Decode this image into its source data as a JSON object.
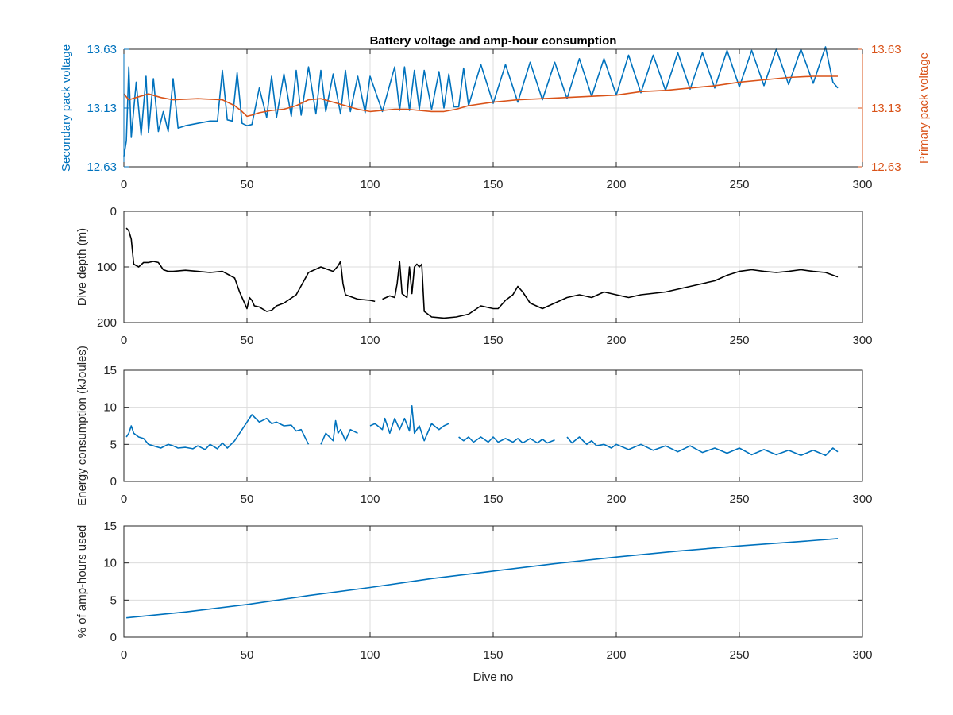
{
  "colors": {
    "blue": "#0072BD",
    "orange": "#D95319",
    "black": "#000000",
    "axis": "#262626",
    "grid": "#dcdcdc"
  },
  "chart_data": [
    {
      "type": "line",
      "title": "Battery voltage and amp-hour consumption",
      "xlabel": "",
      "ylabel": "Secondary pack voltage",
      "ylabel_right": "Primary pack voltage",
      "xlim": [
        0,
        300
      ],
      "ylim": [
        12.63,
        13.63
      ],
      "ylim_right": [
        12.63,
        13.63
      ],
      "xticks": [
        "0",
        "50",
        "100",
        "150",
        "200",
        "250",
        "300"
      ],
      "yticks": [
        "12.63",
        "13.13",
        "13.63"
      ],
      "yticks_right": [
        "12.63",
        "13.13",
        "13.63"
      ],
      "grid": true,
      "series": [
        {
          "axis": "left",
          "color": "#0072BD",
          "x": [
            0,
            1,
            2,
            3,
            5,
            7,
            9,
            10,
            12,
            14,
            16,
            18,
            20,
            22,
            25,
            30,
            35,
            38,
            40,
            42,
            44,
            46,
            48,
            50,
            52,
            55,
            58,
            60,
            62,
            65,
            68,
            70,
            72,
            75,
            78,
            80,
            82,
            85,
            88,
            90,
            92,
            95,
            98,
            100,
            105,
            110,
            112,
            114,
            116,
            118,
            120,
            122,
            125,
            128,
            130,
            132,
            134,
            136,
            138,
            140,
            145,
            150,
            155,
            160,
            165,
            170,
            175,
            180,
            185,
            190,
            195,
            200,
            205,
            210,
            215,
            220,
            225,
            230,
            235,
            240,
            245,
            250,
            255,
            260,
            265,
            270,
            275,
            280,
            285,
            288,
            290
          ],
          "values": [
            12.72,
            12.85,
            13.48,
            12.88,
            13.35,
            12.9,
            13.4,
            12.92,
            13.38,
            12.93,
            13.1,
            12.93,
            13.38,
            12.96,
            12.98,
            13.0,
            13.02,
            13.02,
            13.45,
            13.03,
            13.02,
            13.43,
            13.0,
            12.98,
            12.99,
            13.3,
            13.05,
            13.4,
            13.05,
            13.42,
            13.06,
            13.45,
            13.07,
            13.48,
            13.08,
            13.45,
            13.1,
            13.42,
            13.08,
            13.45,
            13.1,
            13.4,
            13.09,
            13.4,
            13.1,
            13.48,
            13.11,
            13.48,
            13.11,
            13.45,
            13.12,
            13.45,
            13.12,
            13.44,
            13.13,
            13.42,
            13.14,
            13.14,
            13.47,
            13.15,
            13.5,
            13.17,
            13.5,
            13.18,
            13.52,
            13.2,
            13.52,
            13.21,
            13.55,
            13.23,
            13.55,
            13.24,
            13.58,
            13.26,
            13.58,
            13.28,
            13.6,
            13.29,
            13.6,
            13.3,
            13.62,
            13.31,
            13.62,
            13.32,
            13.63,
            13.33,
            13.63,
            13.34,
            13.65,
            13.35,
            13.3
          ]
        },
        {
          "axis": "right",
          "color": "#D95319",
          "x": [
            0,
            2,
            5,
            10,
            15,
            20,
            30,
            40,
            45,
            48,
            50,
            52,
            55,
            60,
            65,
            70,
            75,
            80,
            85,
            90,
            95,
            100,
            105,
            110,
            115,
            120,
            125,
            130,
            135,
            140,
            150,
            160,
            170,
            180,
            190,
            200,
            210,
            220,
            230,
            240,
            250,
            260,
            270,
            280,
            290
          ],
          "values": [
            13.25,
            13.2,
            13.22,
            13.25,
            13.22,
            13.2,
            13.21,
            13.2,
            13.15,
            13.1,
            13.06,
            13.07,
            13.09,
            13.11,
            13.12,
            13.15,
            13.2,
            13.21,
            13.18,
            13.15,
            13.12,
            13.1,
            13.11,
            13.12,
            13.12,
            13.11,
            13.1,
            13.1,
            13.12,
            13.15,
            13.18,
            13.2,
            13.21,
            13.22,
            13.23,
            13.24,
            13.27,
            13.28,
            13.3,
            13.32,
            13.35,
            13.37,
            13.39,
            13.4,
            13.4
          ]
        }
      ]
    },
    {
      "type": "line",
      "title": "",
      "xlabel": "",
      "ylabel": "Dive depth (m)",
      "xlim": [
        0,
        300
      ],
      "ylim": [
        0,
        200
      ],
      "reversed_y": true,
      "xticks": [
        "0",
        "50",
        "100",
        "150",
        "200",
        "250",
        "300"
      ],
      "yticks": [
        "0",
        "100",
        "200"
      ],
      "grid": true,
      "series": [
        {
          "color": "#000000",
          "x": [
            1,
            2,
            3,
            4,
            6,
            8,
            10,
            12,
            14,
            16,
            18,
            20,
            25,
            30,
            35,
            40,
            45,
            47,
            50,
            51,
            52,
            53,
            55,
            58,
            60,
            62,
            65,
            70,
            75,
            80,
            85,
            87,
            88,
            89,
            90,
            95,
            100,
            102,
            null,
            105,
            108,
            110,
            111,
            112,
            113,
            115,
            116,
            117,
            118,
            119,
            120,
            121,
            122,
            125,
            130,
            135,
            140,
            145,
            150,
            152,
            155,
            158,
            160,
            162,
            165,
            170,
            175,
            180,
            185,
            190,
            195,
            200,
            205,
            210,
            220,
            230,
            240,
            245,
            250,
            255,
            260,
            265,
            270,
            275,
            280,
            285,
            290
          ],
          "values": [
            30,
            35,
            50,
            95,
            100,
            92,
            92,
            90,
            92,
            105,
            108,
            108,
            106,
            108,
            110,
            108,
            120,
            145,
            175,
            155,
            160,
            170,
            172,
            180,
            178,
            170,
            165,
            150,
            110,
            100,
            108,
            98,
            90,
            130,
            150,
            158,
            160,
            162,
            null,
            158,
            152,
            155,
            130,
            90,
            148,
            155,
            100,
            148,
            100,
            95,
            100,
            95,
            180,
            190,
            192,
            190,
            185,
            170,
            175,
            175,
            160,
            150,
            135,
            145,
            165,
            175,
            165,
            155,
            150,
            155,
            145,
            150,
            155,
            150,
            145,
            135,
            125,
            115,
            108,
            105,
            108,
            110,
            108,
            105,
            108,
            110,
            118
          ]
        }
      ]
    },
    {
      "type": "line",
      "title": "",
      "xlabel": "",
      "ylabel": "Energy consumption (kJoules)",
      "xlim": [
        0,
        300
      ],
      "ylim": [
        0,
        15
      ],
      "xticks": [
        "0",
        "50",
        "100",
        "150",
        "200",
        "250",
        "300"
      ],
      "yticks": [
        "0",
        "5",
        "10",
        "15"
      ],
      "grid": true,
      "series": [
        {
          "color": "#0072BD",
          "x": [
            1,
            2,
            3,
            4,
            6,
            8,
            10,
            12,
            15,
            18,
            20,
            22,
            25,
            28,
            30,
            33,
            35,
            38,
            40,
            42,
            45,
            47,
            50,
            52,
            55,
            58,
            60,
            62,
            65,
            68,
            70,
            72,
            75,
            null,
            80,
            82,
            85,
            86,
            87,
            88,
            90,
            92,
            95,
            null,
            100,
            102,
            105,
            106,
            108,
            110,
            112,
            114,
            116,
            117,
            118,
            120,
            122,
            125,
            128,
            130,
            132,
            null,
            136,
            138,
            140,
            142,
            145,
            148,
            150,
            152,
            155,
            158,
            160,
            162,
            165,
            168,
            170,
            172,
            175,
            null,
            180,
            182,
            185,
            188,
            190,
            192,
            195,
            198,
            200,
            205,
            210,
            215,
            220,
            225,
            230,
            235,
            240,
            245,
            250,
            255,
            260,
            265,
            270,
            275,
            280,
            285,
            288,
            290
          ],
          "values": [
            6.0,
            6.5,
            7.5,
            6.5,
            6.0,
            5.8,
            5.0,
            4.8,
            4.5,
            5.0,
            4.8,
            4.5,
            4.6,
            4.4,
            4.8,
            4.3,
            5.0,
            4.4,
            5.2,
            4.5,
            5.5,
            6.5,
            8.0,
            9.0,
            8.0,
            8.5,
            7.8,
            8.0,
            7.5,
            7.6,
            6.8,
            7.0,
            5.0,
            null,
            5.0,
            6.5,
            5.5,
            8.2,
            6.5,
            7.0,
            5.5,
            7.0,
            6.5,
            null,
            7.5,
            7.8,
            7.0,
            8.5,
            6.5,
            8.5,
            7.0,
            8.5,
            6.8,
            10.2,
            6.5,
            7.5,
            5.5,
            7.8,
            7.0,
            7.5,
            7.8,
            null,
            6.0,
            5.5,
            6.0,
            5.3,
            6.0,
            5.3,
            6.0,
            5.3,
            5.8,
            5.3,
            5.8,
            5.2,
            5.8,
            5.2,
            5.7,
            5.2,
            5.6,
            null,
            6.0,
            5.2,
            6.0,
            5.0,
            5.5,
            4.8,
            5.0,
            4.5,
            5.0,
            4.3,
            5.0,
            4.2,
            4.8,
            4.0,
            4.8,
            3.9,
            4.5,
            3.8,
            4.5,
            3.6,
            4.3,
            3.6,
            4.2,
            3.5,
            4.2,
            3.5,
            4.5,
            4.0
          ]
        }
      ]
    },
    {
      "type": "line",
      "title": "",
      "xlabel": "Dive no",
      "ylabel": "% of amp-hours used",
      "xlim": [
        0,
        300
      ],
      "ylim": [
        0,
        15
      ],
      "xticks": [
        "0",
        "50",
        "100",
        "150",
        "200",
        "250",
        "300"
      ],
      "yticks": [
        "0",
        "5",
        "10",
        "15"
      ],
      "grid": true,
      "series": [
        {
          "color": "#0072BD",
          "x": [
            1,
            25,
            50,
            75,
            100,
            125,
            150,
            175,
            200,
            225,
            250,
            275,
            290
          ],
          "values": [
            2.6,
            3.4,
            4.4,
            5.6,
            6.7,
            7.9,
            8.9,
            9.9,
            10.8,
            11.6,
            12.3,
            12.9,
            13.3
          ]
        }
      ]
    }
  ]
}
